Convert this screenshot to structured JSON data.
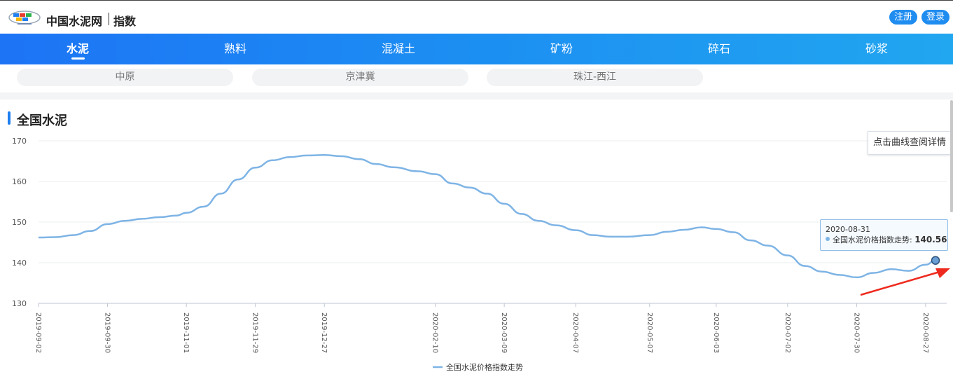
{
  "header": {
    "site_title": "中国水泥网",
    "page_sub": "指数",
    "register_label": "注册",
    "login_label": "登录"
  },
  "nav": {
    "items": [
      {
        "label": "水泥",
        "active": true
      },
      {
        "label": "熟料"
      },
      {
        "label": "混凝土"
      },
      {
        "label": "矿粉"
      },
      {
        "label": "碎石"
      },
      {
        "label": "砂浆"
      }
    ]
  },
  "regions": [
    "中原",
    "京津冀",
    "珠江-西江"
  ],
  "section": {
    "title": "全国水泥",
    "hint": "点击曲线查阅详情"
  },
  "tooltip": {
    "date": "2020-08-31",
    "series_label": "全国水泥价格指数走势: ",
    "value": "140.56"
  },
  "colors": {
    "accent": "#1f8cf0",
    "nav_start": "#1d74f5",
    "nav_end": "#21a6f0",
    "line": "#7eb4e5",
    "arrow": "#ee2a1e"
  },
  "chart_data": {
    "type": "line",
    "ylim": [
      130,
      170
    ],
    "yticks": [
      130,
      140,
      150,
      160,
      170
    ],
    "xlim": [
      "2019-09-02",
      "2020-08-31"
    ],
    "xticks": [
      "2019-09-02",
      "2019-09-30",
      "2019-11-01",
      "2019-11-29",
      "2019-12-27",
      "2020-02-10",
      "2020-03-09",
      "2020-04-07",
      "2020-05-07",
      "2020-06-03",
      "2020-07-02",
      "2020-07-30",
      "2020-08-27"
    ],
    "grid": true,
    "legend_position": "bottom-center",
    "series": [
      {
        "name": "全国水泥价格指数走势",
        "points": [
          [
            "2019-09-02",
            146.2
          ],
          [
            "2019-09-09",
            146.3
          ],
          [
            "2019-09-16",
            146.8
          ],
          [
            "2019-09-23",
            147.8
          ],
          [
            "2019-09-30",
            149.5
          ],
          [
            "2019-10-07",
            150.3
          ],
          [
            "2019-10-14",
            150.8
          ],
          [
            "2019-10-21",
            151.2
          ],
          [
            "2019-10-28",
            151.6
          ],
          [
            "2019-11-01",
            152.3
          ],
          [
            "2019-11-08",
            153.8
          ],
          [
            "2019-11-15",
            157.0
          ],
          [
            "2019-11-22",
            160.5
          ],
          [
            "2019-11-29",
            163.4
          ],
          [
            "2019-12-06",
            165.2
          ],
          [
            "2019-12-13",
            166.0
          ],
          [
            "2019-12-20",
            166.4
          ],
          [
            "2019-12-27",
            166.5
          ],
          [
            "2020-01-03",
            166.2
          ],
          [
            "2020-01-10",
            165.5
          ],
          [
            "2020-01-17",
            164.3
          ],
          [
            "2020-01-24",
            163.5
          ],
          [
            "2020-02-03",
            162.5
          ],
          [
            "2020-02-10",
            161.8
          ],
          [
            "2020-02-17",
            159.5
          ],
          [
            "2020-02-24",
            158.5
          ],
          [
            "2020-03-02",
            157.0
          ],
          [
            "2020-03-09",
            154.5
          ],
          [
            "2020-03-16",
            152.0
          ],
          [
            "2020-03-23",
            150.3
          ],
          [
            "2020-03-30",
            149.2
          ],
          [
            "2020-04-07",
            148.0
          ],
          [
            "2020-04-14",
            146.8
          ],
          [
            "2020-04-21",
            146.4
          ],
          [
            "2020-04-28",
            146.4
          ],
          [
            "2020-05-07",
            146.8
          ],
          [
            "2020-05-14",
            147.6
          ],
          [
            "2020-05-21",
            148.1
          ],
          [
            "2020-05-28",
            148.7
          ],
          [
            "2020-06-03",
            148.3
          ],
          [
            "2020-06-10",
            147.5
          ],
          [
            "2020-06-17",
            145.5
          ],
          [
            "2020-06-24",
            144.2
          ],
          [
            "2020-07-02",
            141.8
          ],
          [
            "2020-07-09",
            139.2
          ],
          [
            "2020-07-16",
            137.8
          ],
          [
            "2020-07-23",
            137.0
          ],
          [
            "2020-07-30",
            136.4
          ],
          [
            "2020-08-06",
            137.5
          ],
          [
            "2020-08-13",
            138.4
          ],
          [
            "2020-08-20",
            138.0
          ],
          [
            "2020-08-27",
            139.5
          ],
          [
            "2020-08-31",
            140.56
          ]
        ]
      }
    ]
  }
}
